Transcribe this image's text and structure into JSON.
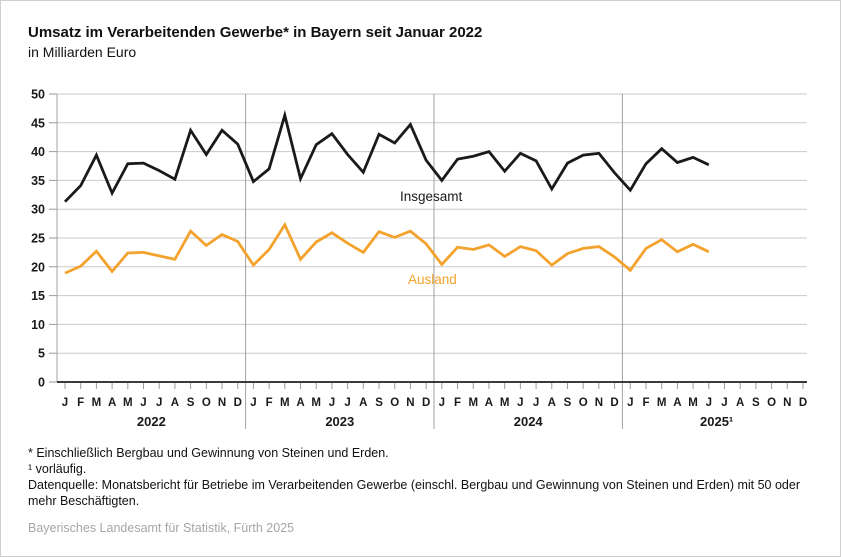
{
  "chart_data": {
    "type": "line",
    "title": "Umsatz im Verarbeitenden Gewerbe* in Bayern seit Januar 2022",
    "subtitle": "in Milliarden Euro",
    "ylabel": "Milliarden Euro",
    "ylim": [
      0,
      50
    ],
    "y_step": 5,
    "y_tick_labels": [
      "0",
      "5",
      "10",
      "15",
      "20",
      "25",
      "30",
      "35",
      "40",
      "45",
      "50"
    ],
    "grid": true,
    "legend": "inline-labels",
    "x_axis": {
      "month_letters": [
        "J",
        "F",
        "M",
        "A",
        "M",
        "J",
        "J",
        "A",
        "S",
        "O",
        "N",
        "D"
      ],
      "years": [
        "2022",
        "2023",
        "2024",
        "2025¹"
      ],
      "total_month_slots": 48,
      "data_months": 42
    },
    "series": [
      {
        "name": "Insgesamt",
        "color": "#1a1a1a",
        "values": [
          31.3,
          34.1,
          39.4,
          32.8,
          37.9,
          38.0,
          36.7,
          35.2,
          43.7,
          39.5,
          43.7,
          41.3,
          34.8,
          37.0,
          46.3,
          35.3,
          41.2,
          43.1,
          39.5,
          36.4,
          43.0,
          41.5,
          44.7,
          38.5,
          35.0,
          38.7,
          39.2,
          40.0,
          36.6,
          39.7,
          38.4,
          33.5,
          38.0,
          39.4,
          39.7,
          36.3,
          33.3,
          37.9,
          40.5,
          38.1,
          39.0,
          37.7
        ]
      },
      {
        "name": "Ausland",
        "color": "#F3A32D",
        "values": [
          18.9,
          20.1,
          22.7,
          19.2,
          22.4,
          22.5,
          21.9,
          21.3,
          26.2,
          23.7,
          25.6,
          24.4,
          20.3,
          23.0,
          27.3,
          21.3,
          24.3,
          25.9,
          24.1,
          22.5,
          26.1,
          25.1,
          26.2,
          24.0,
          20.4,
          23.4,
          23.0,
          23.8,
          21.8,
          23.5,
          22.8,
          20.3,
          22.3,
          23.2,
          23.5,
          21.7,
          19.4,
          23.2,
          24.7,
          22.6,
          23.9,
          22.6
        ]
      }
    ],
    "colors": {
      "grid": "#c9c9c9",
      "separator": "#a3a3a3",
      "axis_line": "#3a3a3a",
      "tick": "#9b9b9b",
      "text": "#1a1a1a"
    }
  },
  "footnotes": {
    "asterisk": "* Einschließlich Bergbau und Gewinnung von Steinen und Erden.",
    "preliminary": "¹ vorläufig.",
    "datasource": "Datenquelle: Monatsbericht für Betriebe im Verarbeitenden Gewerbe (einschl. Bergbau und Gewinnung von Steinen und Erden) mit 50 oder mehr Beschäftigten.",
    "attribution": "Bayerisches Landesamt für Statistik, Fürth 2025"
  }
}
